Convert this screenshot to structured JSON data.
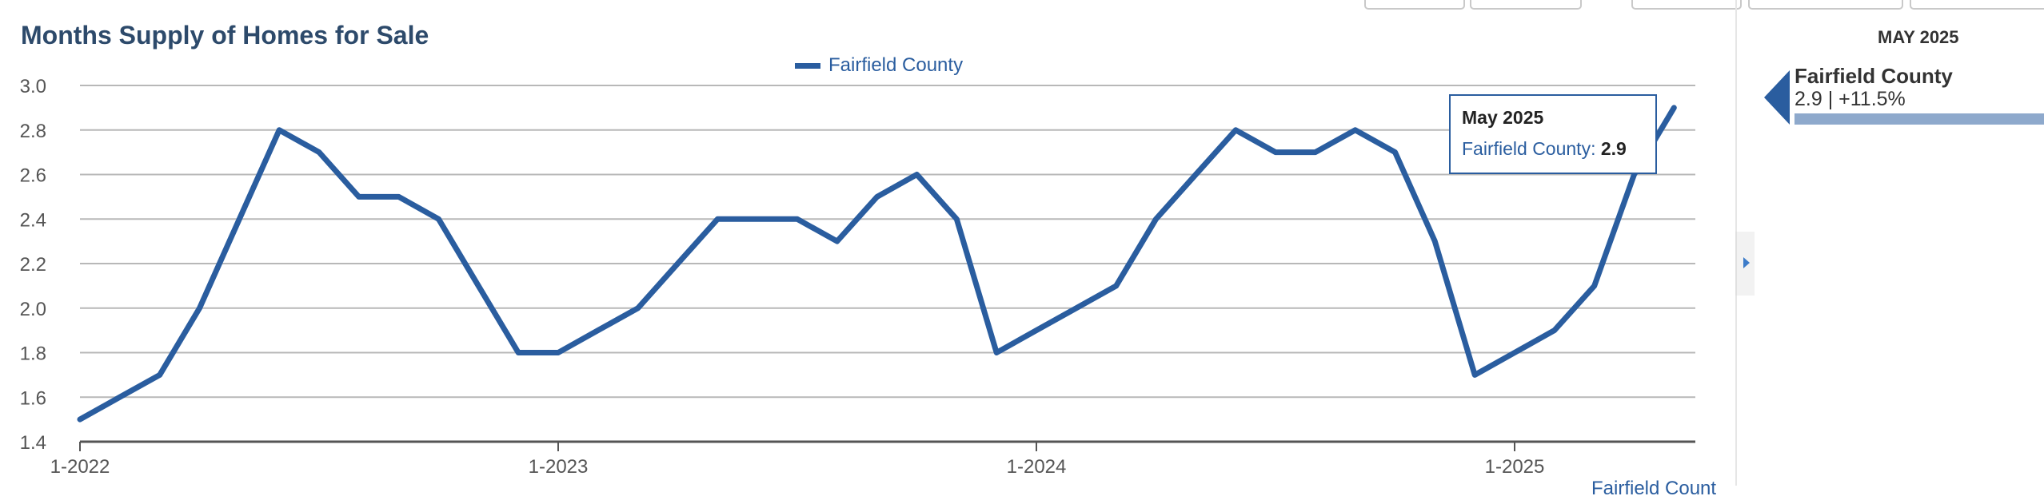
{
  "chart_data": {
    "type": "line",
    "title": "Months Supply of Homes for Sale",
    "xlabel": "",
    "ylabel": "",
    "ylim": [
      1.4,
      3.0
    ],
    "yticks": [
      "1.4",
      "1.6",
      "1.8",
      "2.0",
      "2.2",
      "2.4",
      "2.6",
      "2.8",
      "3.0"
    ],
    "xticks": [
      "1-2022",
      "1-2023",
      "1-2024",
      "1-2025"
    ],
    "x_start": "2022-01",
    "legend_position": "top-center",
    "grid": true,
    "series": [
      {
        "name": "Fairfield County",
        "color": "#2a5d9f",
        "values": [
          1.5,
          1.6,
          1.7,
          2.0,
          2.4,
          2.8,
          2.7,
          2.5,
          2.5,
          2.4,
          2.1,
          1.8,
          1.8,
          1.9,
          2.0,
          2.2,
          2.4,
          2.4,
          2.4,
          2.3,
          2.5,
          2.6,
          2.4,
          1.8,
          1.9,
          2.0,
          2.1,
          2.4,
          2.6,
          2.8,
          2.7,
          2.7,
          2.8,
          2.7,
          2.3,
          1.7,
          1.8,
          1.9,
          2.1,
          2.6,
          2.9
        ]
      }
    ]
  },
  "tooltip": {
    "title": "May 2025",
    "series_label": "Fairfield County:",
    "value": "2.9"
  },
  "side_panel": {
    "date": "MAY 2025",
    "series_name": "Fairfield County",
    "value_text": "2.9 | +11.5%",
    "accent_color": "#2a5d9f",
    "bar_color": "#8ea9cc"
  },
  "footer": {
    "cut_label": "Fairfield Count"
  }
}
